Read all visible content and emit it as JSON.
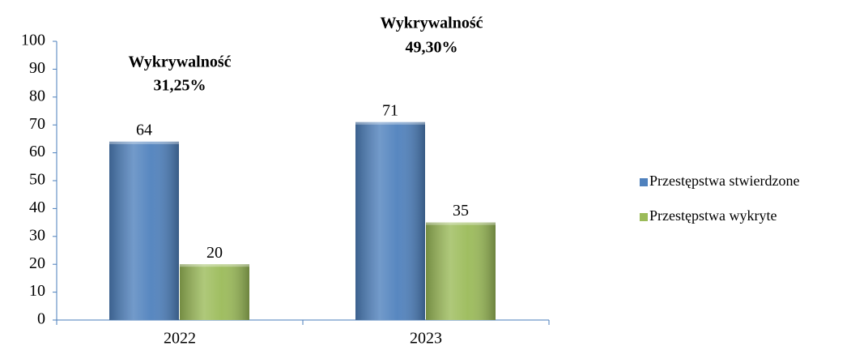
{
  "chart_data": {
    "type": "bar",
    "categories": [
      "2022",
      "2023"
    ],
    "series": [
      {
        "name": "Przestępstwa stwierdzone",
        "color": "#4f81bd",
        "values": [
          64,
          71
        ]
      },
      {
        "name": "Przestępstwa wykryte",
        "color": "#9bbb59",
        "values": [
          20,
          35
        ]
      }
    ],
    "annotations": [
      [
        "Wykrywalność",
        "31,25%"
      ],
      [
        "Wykrywalność",
        "49,30%"
      ]
    ],
    "ylim": [
      0,
      100
    ],
    "yticks": [
      0,
      10,
      20,
      30,
      40,
      50,
      60,
      70,
      80,
      90,
      100
    ],
    "legend": "right"
  }
}
